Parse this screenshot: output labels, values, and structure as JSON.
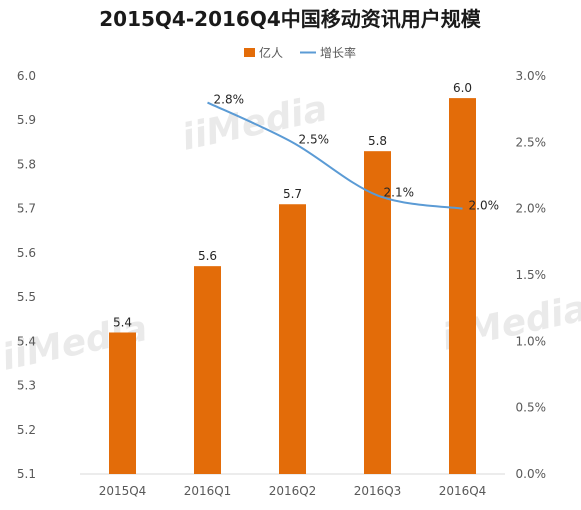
{
  "chart_data": {
    "type": "bar",
    "title": "2015Q4-2016Q4中国移动资讯用户规模",
    "categories": [
      "2015Q4",
      "2016Q1",
      "2016Q2",
      "2016Q3",
      "2016Q4"
    ],
    "series": [
      {
        "name": "亿人",
        "type": "bar",
        "axis": "left",
        "color": "#E36C09",
        "values": [
          5.42,
          5.57,
          5.71,
          5.83,
          5.95
        ],
        "data_labels": [
          "5.4",
          "5.6",
          "5.7",
          "5.8",
          "6.0"
        ]
      },
      {
        "name": "增长率",
        "type": "line",
        "axis": "right",
        "color": "#5B9BD5",
        "values": [
          null,
          2.8,
          2.5,
          2.1,
          2.0
        ],
        "data_labels": [
          "",
          "2.8%",
          "2.5%",
          "2.1%",
          "2.0%"
        ]
      }
    ],
    "y_left": {
      "min": 5.1,
      "max": 6.0,
      "ticks": [
        "5.1",
        "5.2",
        "5.3",
        "5.4",
        "5.5",
        "5.6",
        "5.7",
        "5.8",
        "5.9",
        "6.0"
      ]
    },
    "y_right": {
      "min": 0,
      "max": 3.0,
      "ticks": [
        "0.0%",
        "0.5%",
        "1.0%",
        "1.5%",
        "2.0%",
        "2.5%",
        "3.0%"
      ]
    },
    "xlabel": "",
    "ylabel": "",
    "grid": false,
    "legend": "top-center",
    "watermark": "iiMedia"
  }
}
